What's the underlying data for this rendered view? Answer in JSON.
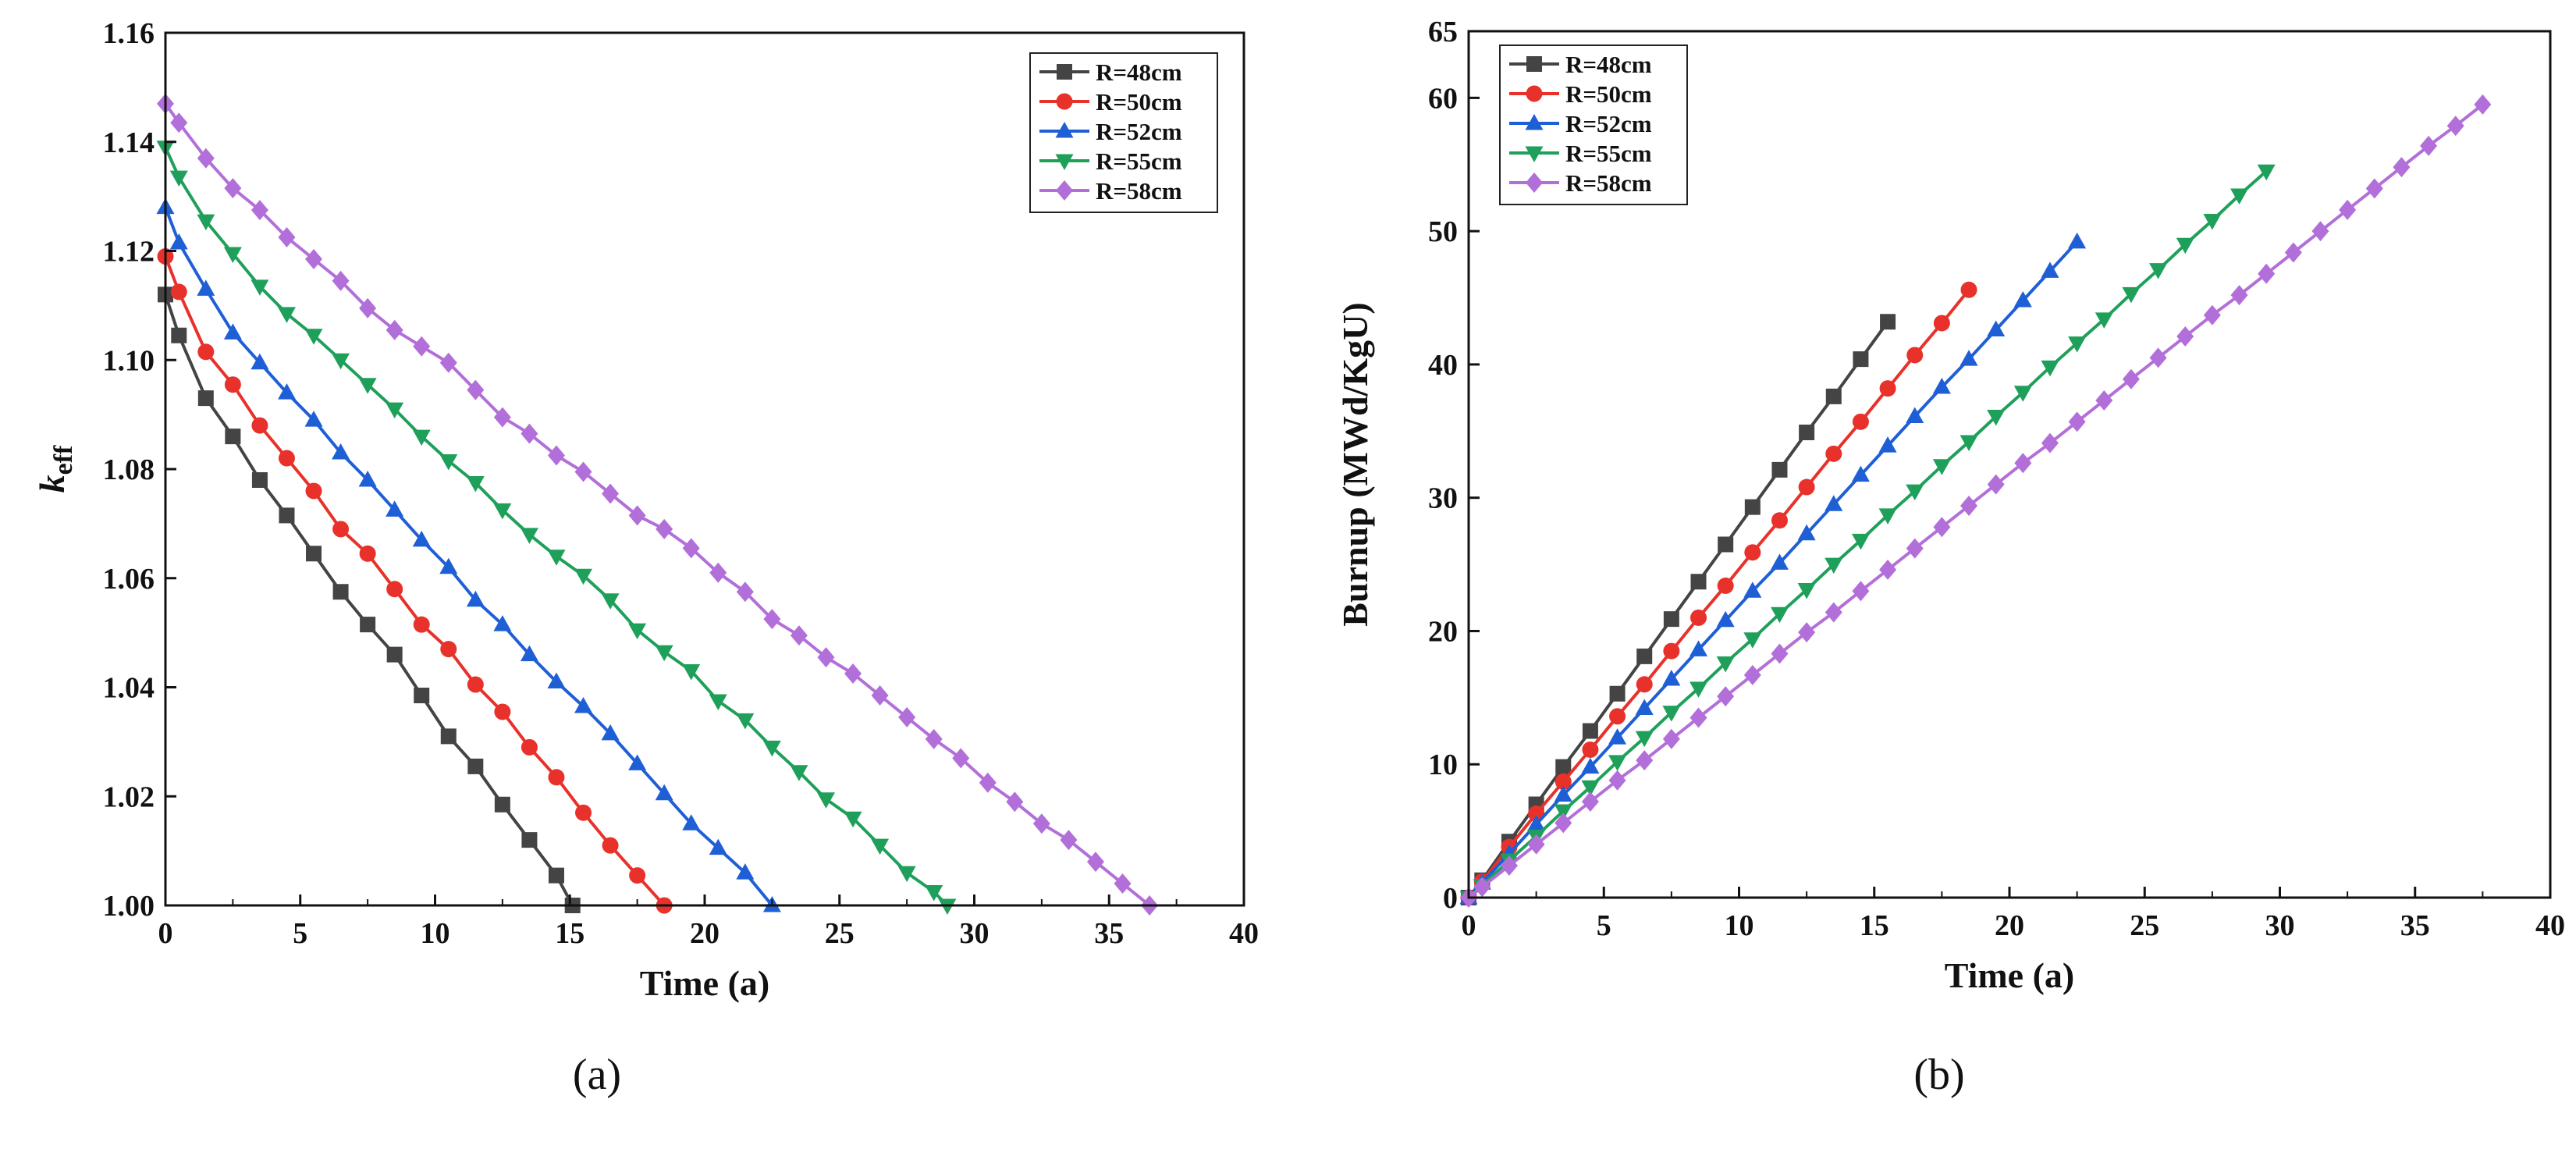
{
  "figure": {
    "panel_labels": [
      "(a)",
      "(b)"
    ]
  },
  "chart_data": [
    {
      "type": "line",
      "panel": "(a)",
      "title": "",
      "xlabel": "Time (a)",
      "ylabel": "k_eff",
      "ylabel_main": "k",
      "ylabel_sub": "eff",
      "xlim": [
        0,
        40
      ],
      "ylim": [
        1.0,
        1.16
      ],
      "xticks": [
        0,
        5,
        10,
        15,
        20,
        25,
        30,
        35,
        40
      ],
      "yticks": [
        1.0,
        1.02,
        1.04,
        1.06,
        1.08,
        1.1,
        1.12,
        1.14,
        1.16
      ],
      "ytick_labels": [
        "1.00",
        "1.02",
        "1.04",
        "1.06",
        "1.08",
        "1.10",
        "1.12",
        "1.14",
        "1.16"
      ],
      "legend_position": "top-right",
      "series": [
        {
          "name": "R=48cm",
          "color": "#444444",
          "marker": "square",
          "x": [
            0,
            0.5,
            1.5,
            2.5,
            3.5,
            4.5,
            5.5,
            6.5,
            7.5,
            8.5,
            9.5,
            10.5,
            11.5,
            12.5,
            13.5,
            14.5,
            15.1
          ],
          "y": [
            1.112,
            1.1045,
            1.093,
            1.086,
            1.078,
            1.0715,
            1.0645,
            1.0575,
            1.0515,
            1.046,
            1.0385,
            1.031,
            1.0255,
            1.0185,
            1.012,
            1.0055,
            1.0
          ]
        },
        {
          "name": "R=50cm",
          "color": "#e8312a",
          "marker": "circle",
          "x": [
            0,
            0.5,
            1.5,
            2.5,
            3.5,
            4.5,
            5.5,
            6.5,
            7.5,
            8.5,
            9.5,
            10.5,
            11.5,
            12.5,
            13.5,
            14.5,
            15.5,
            16.5,
            17.5,
            18.5
          ],
          "y": [
            1.119,
            1.1125,
            1.1015,
            1.0955,
            1.088,
            1.082,
            1.076,
            1.069,
            1.0645,
            1.058,
            1.0515,
            1.047,
            1.0405,
            1.0355,
            1.029,
            1.0235,
            1.017,
            1.011,
            1.0055,
            1.0
          ]
        },
        {
          "name": "R=52cm",
          "color": "#1f5fd6",
          "marker": "triangle-up",
          "x": [
            0,
            0.5,
            1.5,
            2.5,
            3.5,
            4.5,
            5.5,
            6.5,
            7.5,
            8.5,
            9.5,
            10.5,
            11.5,
            12.5,
            13.5,
            14.5,
            15.5,
            16.5,
            17.5,
            18.5,
            19.5,
            20.5,
            21.5,
            22.5
          ],
          "y": [
            1.128,
            1.1215,
            1.113,
            1.105,
            1.0995,
            1.094,
            1.089,
            1.083,
            1.078,
            1.0725,
            1.067,
            1.062,
            1.056,
            1.0515,
            1.046,
            1.041,
            1.0365,
            1.0315,
            1.026,
            1.0205,
            1.015,
            1.0105,
            1.006,
            1.0
          ]
        },
        {
          "name": "R=55cm",
          "color": "#1fa05a",
          "marker": "triangle-down",
          "x": [
            0,
            0.5,
            1.5,
            2.5,
            3.5,
            4.5,
            5.5,
            6.5,
            7.5,
            8.5,
            9.5,
            10.5,
            11.5,
            12.5,
            13.5,
            14.5,
            15.5,
            16.5,
            17.5,
            18.5,
            19.5,
            20.5,
            21.5,
            22.5,
            23.5,
            24.5,
            25.5,
            26.5,
            27.5,
            28.5,
            29.0
          ],
          "y": [
            1.139,
            1.1335,
            1.1255,
            1.1195,
            1.1135,
            1.1085,
            1.1045,
            1.1,
            1.0955,
            1.091,
            1.086,
            1.0815,
            1.0775,
            1.0725,
            1.068,
            1.064,
            1.0605,
            1.056,
            1.0505,
            1.0465,
            1.043,
            1.0375,
            1.034,
            1.029,
            1.0245,
            1.0195,
            1.016,
            1.011,
            1.006,
            1.0025,
            1.0
          ]
        },
        {
          "name": "R=58cm",
          "color": "#b36fd9",
          "marker": "diamond",
          "x": [
            0,
            0.5,
            1.5,
            2.5,
            3.5,
            4.5,
            5.5,
            6.5,
            7.5,
            8.5,
            9.5,
            10.5,
            11.5,
            12.5,
            13.5,
            14.5,
            15.5,
            16.5,
            17.5,
            18.5,
            19.5,
            20.5,
            21.5,
            22.5,
            23.5,
            24.5,
            25.5,
            26.5,
            27.5,
            28.5,
            29.5,
            30.5,
            31.5,
            32.5,
            33.5,
            34.5,
            35.5,
            36.5
          ],
          "y": [
            1.147,
            1.1435,
            1.137,
            1.1315,
            1.1275,
            1.1225,
            1.1185,
            1.1145,
            1.1095,
            1.1055,
            1.1025,
            1.0995,
            1.0945,
            1.0895,
            1.0865,
            1.0825,
            1.0795,
            1.0755,
            1.0715,
            1.069,
            1.0655,
            1.061,
            1.0575,
            1.0525,
            1.0495,
            1.0455,
            1.0425,
            1.0385,
            1.0345,
            1.0305,
            1.027,
            1.0225,
            1.019,
            1.015,
            1.012,
            1.008,
            1.004,
            1.0
          ]
        }
      ]
    },
    {
      "type": "line",
      "panel": "(b)",
      "title": "",
      "xlabel": "Time (a)",
      "ylabel": "Burnup (MWd/KgU)",
      "xlim": [
        0,
        40
      ],
      "ylim": [
        0,
        65
      ],
      "xticks": [
        0,
        5,
        10,
        15,
        20,
        25,
        30,
        35,
        40
      ],
      "yticks": [
        0,
        10,
        20,
        30,
        40,
        50,
        60,
        65
      ],
      "ytick_labels": [
        "0",
        "10",
        "20",
        "30",
        "40",
        "50",
        "60",
        "65"
      ],
      "legend_position": "top-left",
      "series": [
        {
          "name": "R=48cm",
          "color": "#444444",
          "marker": "square",
          "x": [
            0,
            0.5,
            1.5,
            2.5,
            3.5,
            4.5,
            5.5,
            6.5,
            7.5,
            8.5,
            9.5,
            10.5,
            11.5,
            12.5,
            13.5,
            14.5,
            15.5
          ],
          "y": [
            0,
            1.3,
            4.2,
            7.0,
            9.8,
            12.5,
            15.3,
            18.1,
            20.9,
            23.7,
            26.5,
            29.3,
            32.1,
            34.9,
            37.6,
            40.4,
            43.2
          ]
        },
        {
          "name": "R=50cm",
          "color": "#e8312a",
          "marker": "circle",
          "x": [
            0,
            0.5,
            1.5,
            2.5,
            3.5,
            4.5,
            5.5,
            6.5,
            7.5,
            8.5,
            9.5,
            10.5,
            11.5,
            12.5,
            13.5,
            14.5,
            15.5,
            16.5,
            17.5,
            18.5
          ],
          "y": [
            0,
            1.2,
            3.8,
            6.3,
            8.7,
            11.1,
            13.6,
            16.0,
            18.5,
            21.0,
            23.4,
            25.9,
            28.3,
            30.8,
            33.3,
            35.7,
            38.2,
            40.7,
            43.1,
            45.6
          ]
        },
        {
          "name": "R=52cm",
          "color": "#1f5fd6",
          "marker": "triangle-up",
          "x": [
            0,
            0.5,
            1.5,
            2.5,
            3.5,
            4.5,
            5.5,
            6.5,
            7.5,
            8.5,
            9.5,
            10.5,
            11.5,
            12.5,
            13.5,
            14.5,
            15.5,
            16.5,
            17.5,
            18.5,
            19.5,
            20.5,
            21.5,
            22.5
          ],
          "y": [
            0,
            1.1,
            3.3,
            5.5,
            7.7,
            9.8,
            12.0,
            14.2,
            16.4,
            18.6,
            20.8,
            23.0,
            25.1,
            27.3,
            29.5,
            31.7,
            33.9,
            36.1,
            38.3,
            40.4,
            42.6,
            44.8,
            47.0,
            49.2
          ]
        },
        {
          "name": "R=55cm",
          "color": "#1fa05a",
          "marker": "triangle-down",
          "x": [
            0,
            0.5,
            1.5,
            2.5,
            3.5,
            4.5,
            5.5,
            6.5,
            7.5,
            8.5,
            9.5,
            10.5,
            11.5,
            12.5,
            13.5,
            14.5,
            15.5,
            16.5,
            17.5,
            18.5,
            19.5,
            20.5,
            21.5,
            22.5,
            23.5,
            24.5,
            25.5,
            26.5,
            27.5,
            28.5,
            29.5
          ],
          "y": [
            0,
            0.9,
            2.8,
            4.6,
            6.5,
            8.3,
            10.2,
            12.0,
            13.9,
            15.7,
            17.6,
            19.4,
            21.3,
            23.1,
            25.0,
            26.8,
            28.7,
            30.5,
            32.4,
            34.2,
            36.1,
            37.9,
            39.8,
            41.6,
            43.4,
            45.3,
            47.1,
            49.0,
            50.8,
            52.7,
            54.5
          ]
        },
        {
          "name": "R=58cm",
          "color": "#b36fd9",
          "marker": "diamond",
          "x": [
            0,
            0.5,
            1.5,
            2.5,
            3.5,
            4.5,
            5.5,
            6.5,
            7.5,
            8.5,
            9.5,
            10.5,
            11.5,
            12.5,
            13.5,
            14.5,
            15.5,
            16.5,
            17.5,
            18.5,
            19.5,
            20.5,
            21.5,
            22.5,
            23.5,
            24.5,
            25.5,
            26.5,
            27.5,
            28.5,
            29.5,
            30.5,
            31.5,
            32.5,
            33.5,
            34.5,
            35.5,
            36.5,
            37.5
          ],
          "y": [
            0,
            0.8,
            2.4,
            4.0,
            5.6,
            7.2,
            8.8,
            10.3,
            11.9,
            13.5,
            15.1,
            16.7,
            18.3,
            19.9,
            21.4,
            23.0,
            24.6,
            26.2,
            27.8,
            29.4,
            31.0,
            32.6,
            34.1,
            35.7,
            37.3,
            38.9,
            40.5,
            42.1,
            43.7,
            45.2,
            46.8,
            48.4,
            50.0,
            51.6,
            53.2,
            54.8,
            56.4,
            57.9,
            59.5
          ]
        }
      ]
    }
  ]
}
